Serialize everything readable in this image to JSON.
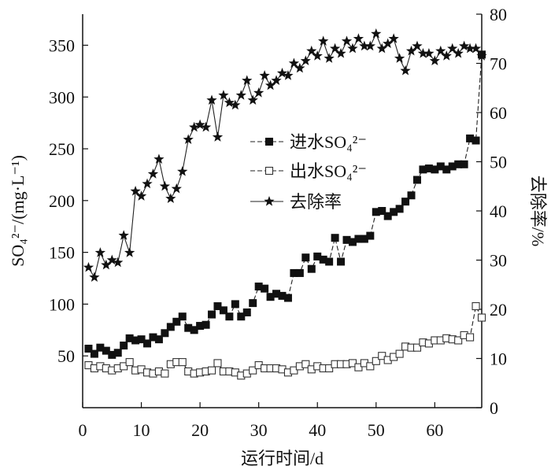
{
  "chart_data": {
    "type": "line",
    "xlabel": "运行时间/d",
    "ylabel": "SO₄²⁻/(mg·L⁻¹)",
    "ylabel_right": "去除率/%",
    "xlim": [
      0,
      68
    ],
    "ylim": [
      0,
      380
    ],
    "ylim_right": [
      0,
      80
    ],
    "x_ticks": [
      0,
      10,
      20,
      30,
      40,
      50,
      60
    ],
    "y_ticks": [
      50,
      100,
      150,
      200,
      250,
      300,
      350
    ],
    "y_ticks_right": [
      0,
      10,
      20,
      30,
      40,
      50,
      60,
      70,
      80
    ],
    "legend_position": "center",
    "x": [
      1,
      2,
      3,
      4,
      5,
      6,
      7,
      8,
      9,
      10,
      11,
      12,
      13,
      14,
      15,
      16,
      17,
      18,
      19,
      20,
      21,
      22,
      23,
      24,
      25,
      26,
      27,
      28,
      29,
      30,
      31,
      32,
      33,
      34,
      35,
      36,
      37,
      38,
      39,
      40,
      41,
      42,
      43,
      44,
      45,
      46,
      47,
      48,
      49,
      50,
      51,
      52,
      53,
      54,
      55,
      56,
      57,
      58,
      59,
      60,
      61,
      62,
      63,
      64,
      65,
      66,
      67,
      68
    ],
    "series": [
      {
        "name": "进水SO₄²⁻",
        "axis": "left",
        "marker": "filled-square",
        "values": [
          57,
          52,
          58,
          55,
          51,
          53,
          60,
          67,
          65,
          66,
          62,
          68,
          66,
          72,
          78,
          83,
          88,
          77,
          75,
          79,
          80,
          90,
          98,
          94,
          88,
          100,
          88,
          92,
          101,
          117,
          115,
          107,
          110,
          108,
          106,
          130,
          130,
          145,
          134,
          146,
          143,
          141,
          164,
          141,
          162,
          160,
          163,
          163,
          166,
          189,
          190,
          185,
          189,
          192,
          199,
          205,
          220,
          230,
          231,
          230,
          233,
          230,
          233,
          235,
          235,
          260,
          258,
          341
        ]
      },
      {
        "name": "出水SO₄²⁻",
        "axis": "left",
        "marker": "open-square",
        "values": [
          41,
          38,
          40,
          38,
          36,
          38,
          40,
          44,
          36,
          37,
          34,
          33,
          35,
          33,
          42,
          44,
          44,
          35,
          33,
          34,
          35,
          36,
          43,
          35,
          35,
          34,
          31,
          33,
          36,
          41,
          38,
          38,
          38,
          37,
          34,
          36,
          40,
          42,
          37,
          40,
          38,
          38,
          42,
          42,
          42,
          43,
          39,
          43,
          40,
          45,
          50,
          46,
          49,
          52,
          59,
          58,
          58,
          63,
          62,
          65,
          65,
          67,
          66,
          65,
          70,
          68,
          98,
          87
        ]
      },
      {
        "name": "去除率",
        "axis": "right",
        "marker": "star",
        "values": [
          28.5,
          26.5,
          31.5,
          29,
          30,
          29.5,
          35,
          31.5,
          44,
          43,
          45.5,
          47.5,
          50.5,
          45,
          42.5,
          44.5,
          48,
          54.5,
          57,
          57.5,
          57,
          62.5,
          55,
          63.5,
          62,
          61.5,
          63.5,
          66.5,
          62.5,
          64,
          67.5,
          65.5,
          66.5,
          68,
          67.5,
          70,
          69,
          70.5,
          72.5,
          71.5,
          74.5,
          71,
          73,
          72,
          74.5,
          73,
          75,
          73.5,
          73.5,
          76,
          73,
          74,
          75,
          71,
          68.5,
          72.5,
          73.5,
          72,
          72,
          70.5,
          72.5,
          71.5,
          73,
          72,
          73.5,
          73,
          73,
          71.5
        ]
      }
    ]
  }
}
